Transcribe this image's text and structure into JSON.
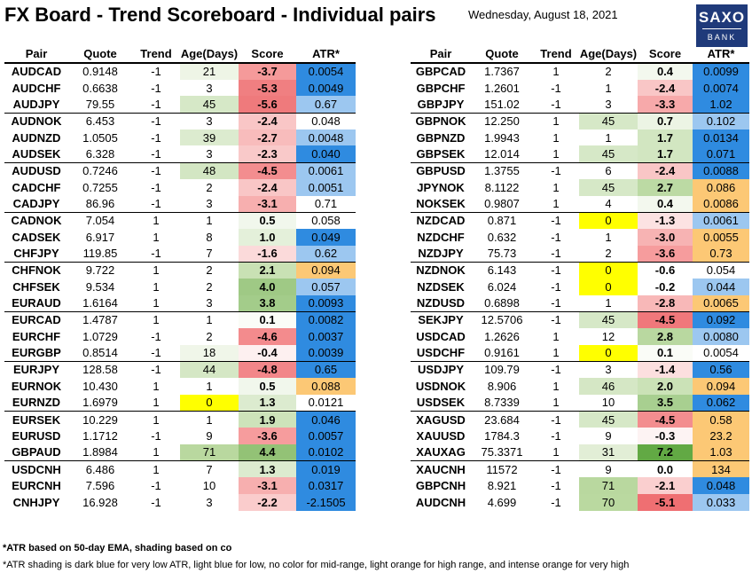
{
  "header": {
    "title": "FX Board - Trend Scoreboard - Individual pairs",
    "date": "Wednesday, August 18, 2021",
    "logo_line1": "SAXO",
    "logo_line2": "BANK"
  },
  "columns": [
    "Pair",
    "Quote",
    "Trend",
    "Age(Days)",
    "Score",
    "ATR*"
  ],
  "left_rows": [
    {
      "pair": "AUDCAD",
      "quote": "0.9148",
      "trend": "-1",
      "age": "21",
      "score": "-3.7",
      "atr": "0.0054",
      "age_bg": "#eef5e6",
      "score_bg": "#f59a9a",
      "atr_bg": "#2f8be0"
    },
    {
      "pair": "AUDCHF",
      "quote": "0.6638",
      "trend": "-1",
      "age": "3",
      "score": "-5.3",
      "atr": "0.0049",
      "age_bg": "",
      "score_bg": "#f07f81",
      "atr_bg": "#2f8be0"
    },
    {
      "pair": "AUDJPY",
      "quote": "79.55",
      "trend": "-1",
      "age": "45",
      "score": "-5.6",
      "atr": "0.67",
      "age_bg": "#d6e8c7",
      "score_bg": "#ef7a7c",
      "atr_bg": "#9cc7f0"
    },
    {
      "pair": "AUDNOK",
      "quote": "6.453",
      "trend": "-1",
      "age": "3",
      "score": "-2.4",
      "atr": "0.048",
      "age_bg": "",
      "score_bg": "#f9c6c6",
      "atr_bg": ""
    },
    {
      "pair": "AUDNZD",
      "quote": "1.0505",
      "trend": "-1",
      "age": "39",
      "score": "-2.7",
      "atr": "0.0048",
      "age_bg": "#dcebcf",
      "score_bg": "#f8bcbc",
      "atr_bg": "#9cc7f0"
    },
    {
      "pair": "AUDSEK",
      "quote": "6.328",
      "trend": "-1",
      "age": "3",
      "score": "-2.3",
      "atr": "0.040",
      "age_bg": "",
      "score_bg": "#f9c9c9",
      "atr_bg": "#2f8be0"
    },
    {
      "pair": "AUDUSD",
      "quote": "0.7246",
      "trend": "-1",
      "age": "48",
      "score": "-4.5",
      "atr": "0.0061",
      "age_bg": "#d3e6c3",
      "score_bg": "#f38d8f",
      "atr_bg": "#9cc7f0"
    },
    {
      "pair": "CADCHF",
      "quote": "0.7255",
      "trend": "-1",
      "age": "2",
      "score": "-2.4",
      "atr": "0.0051",
      "age_bg": "",
      "score_bg": "#f9c6c6",
      "atr_bg": "#9cc7f0"
    },
    {
      "pair": "CADJPY",
      "quote": "86.96",
      "trend": "-1",
      "age": "3",
      "score": "-3.1",
      "atr": "0.71",
      "age_bg": "",
      "score_bg": "#f7afaf",
      "atr_bg": ""
    },
    {
      "pair": "CADNOK",
      "quote": "7.054",
      "trend": "1",
      "age": "1",
      "score": "0.5",
      "atr": "0.058",
      "age_bg": "",
      "score_bg": "#f1f7ec",
      "atr_bg": ""
    },
    {
      "pair": "CADSEK",
      "quote": "6.917",
      "trend": "1",
      "age": "8",
      "score": "1.0",
      "atr": "0.049",
      "age_bg": "",
      "score_bg": "#e4f0da",
      "atr_bg": "#2f8be0"
    },
    {
      "pair": "CHFJPY",
      "quote": "119.85",
      "trend": "-1",
      "age": "7",
      "score": "-1.6",
      "atr": "0.62",
      "age_bg": "",
      "score_bg": "#fbdada",
      "atr_bg": "#9cc7f0"
    },
    {
      "pair": "CHFNOK",
      "quote": "9.722",
      "trend": "1",
      "age": "2",
      "score": "2.1",
      "atr": "0.094",
      "age_bg": "",
      "score_bg": "#c9e1b4",
      "atr_bg": "#fcc875"
    },
    {
      "pair": "CHFSEK",
      "quote": "9.534",
      "trend": "1",
      "age": "2",
      "score": "4.0",
      "atr": "0.057",
      "age_bg": "",
      "score_bg": "#9fc985",
      "atr_bg": "#9cc7f0"
    },
    {
      "pair": "EURAUD",
      "quote": "1.6164",
      "trend": "1",
      "age": "3",
      "score": "3.8",
      "atr": "0.0093",
      "age_bg": "",
      "score_bg": "#a3cc8a",
      "atr_bg": "#2f8be0"
    },
    {
      "pair": "EURCAD",
      "quote": "1.4787",
      "trend": "1",
      "age": "1",
      "score": "0.1",
      "atr": "0.0082",
      "age_bg": "",
      "score_bg": "#fafcf7",
      "atr_bg": "#2f8be0"
    },
    {
      "pair": "EURCHF",
      "quote": "1.0729",
      "trend": "-1",
      "age": "2",
      "score": "-4.6",
      "atr": "0.0037",
      "age_bg": "",
      "score_bg": "#f38b8d",
      "atr_bg": "#2f8be0"
    },
    {
      "pair": "EURGBP",
      "quote": "0.8514",
      "trend": "-1",
      "age": "18",
      "score": "-0.4",
      "atr": "0.0039",
      "age_bg": "#f0f6e9",
      "score_bg": "#fdf0f0",
      "atr_bg": "#2f8be0"
    },
    {
      "pair": "EURJPY",
      "quote": "128.58",
      "trend": "-1",
      "age": "44",
      "score": "-4.8",
      "atr": "0.65",
      "age_bg": "#d5e7c5",
      "score_bg": "#f28689",
      "atr_bg": "#2f8be0"
    },
    {
      "pair": "EURNOK",
      "quote": "10.430",
      "trend": "1",
      "age": "1",
      "score": "0.5",
      "atr": "0.088",
      "age_bg": "",
      "score_bg": "#f1f7ec",
      "atr_bg": "#fcc875"
    },
    {
      "pair": "EURNZD",
      "quote": "1.6979",
      "trend": "1",
      "age": "0",
      "score": "1.3",
      "atr": "0.0121",
      "age_bg": "#ffff00",
      "score_bg": "#dcebcf",
      "atr_bg": ""
    },
    {
      "pair": "EURSEK",
      "quote": "10.229",
      "trend": "1",
      "age": "1",
      "score": "1.9",
      "atr": "0.046",
      "age_bg": "",
      "score_bg": "#cde3ba",
      "atr_bg": "#2f8be0"
    },
    {
      "pair": "EURUSD",
      "quote": "1.1712",
      "trend": "-1",
      "age": "9",
      "score": "-3.6",
      "atr": "0.0057",
      "age_bg": "",
      "score_bg": "#f69c9d",
      "atr_bg": "#2f8be0"
    },
    {
      "pair": "GBPAUD",
      "quote": "1.8984",
      "trend": "1",
      "age": "71",
      "score": "4.4",
      "atr": "0.0102",
      "age_bg": "#b9d89f",
      "score_bg": "#93c276",
      "atr_bg": "#2f8be0"
    },
    {
      "pair": "USDCNH",
      "quote": "6.486",
      "trend": "1",
      "age": "7",
      "score": "1.3",
      "atr": "0.019",
      "age_bg": "",
      "score_bg": "#dcebcf",
      "atr_bg": "#2f8be0"
    },
    {
      "pair": "EURCNH",
      "quote": "7.596",
      "trend": "-1",
      "age": "10",
      "score": "-3.1",
      "atr": "0.0317",
      "age_bg": "",
      "score_bg": "#f7afaf",
      "atr_bg": "#2f8be0"
    },
    {
      "pair": "CNHJPY",
      "quote": "16.928",
      "trend": "-1",
      "age": "3",
      "score": "-2.2",
      "atr": "-2.1505",
      "age_bg": "",
      "score_bg": "#facccc",
      "atr_bg": "#2f8be0"
    }
  ],
  "right_rows": [
    {
      "pair": "GBPCAD",
      "quote": "1.7367",
      "trend": "1",
      "age": "2",
      "score": "0.4",
      "atr": "0.0099",
      "age_bg": "",
      "score_bg": "#f3f8ee",
      "atr_bg": "#2f8be0"
    },
    {
      "pair": "GBPCHF",
      "quote": "1.2601",
      "trend": "-1",
      "age": "1",
      "score": "-2.4",
      "atr": "0.0074",
      "age_bg": "",
      "score_bg": "#f9c6c6",
      "atr_bg": "#2f8be0"
    },
    {
      "pair": "GBPJPY",
      "quote": "151.02",
      "trend": "-1",
      "age": "3",
      "score": "-3.3",
      "atr": "1.02",
      "age_bg": "",
      "score_bg": "#f7a9aa",
      "atr_bg": "#2f8be0"
    },
    {
      "pair": "GBPNOK",
      "quote": "12.250",
      "trend": "1",
      "age": "45",
      "score": "0.7",
      "atr": "0.102",
      "age_bg": "#d6e8c7",
      "score_bg": "#ecf4e4",
      "atr_bg": "#9cc7f0"
    },
    {
      "pair": "GBPNZD",
      "quote": "1.9943",
      "trend": "1",
      "age": "1",
      "score": "1.7",
      "atr": "0.0134",
      "age_bg": "",
      "score_bg": "#d2e6c1",
      "atr_bg": "#2f8be0"
    },
    {
      "pair": "GBPSEK",
      "quote": "12.014",
      "trend": "1",
      "age": "45",
      "score": "1.7",
      "atr": "0.071",
      "age_bg": "#d6e8c7",
      "score_bg": "#d2e6c1",
      "atr_bg": "#2f8be0"
    },
    {
      "pair": "GBPUSD",
      "quote": "1.3755",
      "trend": "-1",
      "age": "6",
      "score": "-2.4",
      "atr": "0.0088",
      "age_bg": "",
      "score_bg": "#f9c6c6",
      "atr_bg": "#2f8be0"
    },
    {
      "pair": "JPYNOK",
      "quote": "8.1122",
      "trend": "1",
      "age": "45",
      "score": "2.7",
      "atr": "0.086",
      "age_bg": "#d6e8c7",
      "score_bg": "#bcdaa4",
      "atr_bg": "#fcc875"
    },
    {
      "pair": "NOKSEK",
      "quote": "0.9807",
      "trend": "1",
      "age": "4",
      "score": "0.4",
      "atr": "0.0086",
      "age_bg": "",
      "score_bg": "#f3f8ee",
      "atr_bg": "#fcc875"
    },
    {
      "pair": "NZDCAD",
      "quote": "0.871",
      "trend": "-1",
      "age": "0",
      "score": "-1.3",
      "atr": "0.0061",
      "age_bg": "#ffff00",
      "score_bg": "#fce2e2",
      "atr_bg": "#9cc7f0"
    },
    {
      "pair": "NZDCHF",
      "quote": "0.632",
      "trend": "-1",
      "age": "1",
      "score": "-3.0",
      "atr": "0.0055",
      "age_bg": "",
      "score_bg": "#f7b3b3",
      "atr_bg": "#fcc875"
    },
    {
      "pair": "NZDJPY",
      "quote": "75.73",
      "trend": "-1",
      "age": "2",
      "score": "-3.6",
      "atr": "0.73",
      "age_bg": "",
      "score_bg": "#f69c9d",
      "atr_bg": "#fcc875"
    },
    {
      "pair": "NZDNOK",
      "quote": "6.143",
      "trend": "-1",
      "age": "0",
      "score": "-0.6",
      "atr": "0.054",
      "age_bg": "#ffff00",
      "score_bg": "",
      "atr_bg": ""
    },
    {
      "pair": "NZDSEK",
      "quote": "6.024",
      "trend": "-1",
      "age": "0",
      "score": "-0.2",
      "atr": "0.044",
      "age_bg": "#ffff00",
      "score_bg": "",
      "atr_bg": "#9cc7f0"
    },
    {
      "pair": "NZDUSD",
      "quote": "0.6898",
      "trend": "-1",
      "age": "1",
      "score": "-2.8",
      "atr": "0.0065",
      "age_bg": "",
      "score_bg": "#f8b8b8",
      "atr_bg": "#fcc875"
    },
    {
      "pair": "SEKJPY",
      "quote": "12.5706",
      "trend": "-1",
      "age": "45",
      "score": "-4.5",
      "atr": "0.092",
      "age_bg": "#d6e8c7",
      "score_bg": "#f0787b",
      "atr_bg": "#2f8be0"
    },
    {
      "pair": "USDCAD",
      "quote": "1.2626",
      "trend": "1",
      "age": "12",
      "score": "2.8",
      "atr": "0.0080",
      "age_bg": "",
      "score_bg": "#b9d8a0",
      "atr_bg": "#9cc7f0"
    },
    {
      "pair": "USDCHF",
      "quote": "0.9161",
      "trend": "1",
      "age": "0",
      "score": "0.1",
      "atr": "0.0054",
      "age_bg": "#ffff00",
      "score_bg": "#fafcf7",
      "atr_bg": ""
    },
    {
      "pair": "USDJPY",
      "quote": "109.79",
      "trend": "-1",
      "age": "3",
      "score": "-1.4",
      "atr": "0.56",
      "age_bg": "",
      "score_bg": "#fcdfdf",
      "atr_bg": "#2f8be0"
    },
    {
      "pair": "USDNOK",
      "quote": "8.906",
      "trend": "1",
      "age": "46",
      "score": "2.0",
      "atr": "0.094",
      "age_bg": "#d5e7c5",
      "score_bg": "#cbe2b7",
      "atr_bg": "#fcc875"
    },
    {
      "pair": "USDSEK",
      "quote": "8.7339",
      "trend": "1",
      "age": "10",
      "score": "3.5",
      "atr": "0.062",
      "age_bg": "",
      "score_bg": "#a8cf90",
      "atr_bg": "#2f8be0"
    },
    {
      "pair": "XAGUSD",
      "quote": "23.684",
      "trend": "-1",
      "age": "45",
      "score": "-4.5",
      "atr": "0.58",
      "age_bg": "#d6e8c7",
      "score_bg": "#f38d8f",
      "atr_bg": "#fcc875"
    },
    {
      "pair": "XAUUSD",
      "quote": "1784.3",
      "trend": "-1",
      "age": "9",
      "score": "-0.3",
      "atr": "23.2",
      "age_bg": "",
      "score_bg": "#fdf3f3",
      "atr_bg": "#fcc875"
    },
    {
      "pair": "XAUXAG",
      "quote": "75.3371",
      "trend": "1",
      "age": "31",
      "score": "7.2",
      "atr": "1.03",
      "age_bg": "#e2eed6",
      "score_bg": "#62a944",
      "atr_bg": "#fcc875"
    },
    {
      "pair": "XAUCNH",
      "quote": "11572",
      "trend": "-1",
      "age": "9",
      "score": "0.0",
      "atr": "134",
      "age_bg": "",
      "score_bg": "",
      "atr_bg": "#fcc875"
    },
    {
      "pair": "GBPCNH",
      "quote": "8.921",
      "trend": "-1",
      "age": "71",
      "score": "-2.1",
      "atr": "0.048",
      "age_bg": "#b9d89f",
      "score_bg": "#facfcf",
      "atr_bg": "#2f8be0"
    },
    {
      "pair": "AUDCNH",
      "quote": "4.699",
      "trend": "-1",
      "age": "70",
      "score": "-5.1",
      "atr": "0.033",
      "age_bg": "#bad9a0",
      "score_bg": "#ef6f72",
      "atr_bg": "#9cc7f0"
    }
  ],
  "footnotes": {
    "note1": "*ATR based on 50-day EMA, shading based on co",
    "note2": "*ATR shading is dark blue for very low ATR, light blue for low, no color for mid-range, light orange for high range, and intense orange for very high"
  }
}
